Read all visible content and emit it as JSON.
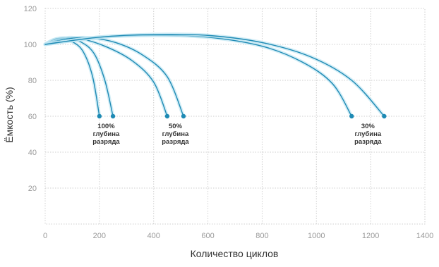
{
  "chart_data": {
    "type": "line",
    "xlabel": "Количество циклов",
    "ylabel": "Ёмкость (%)",
    "xlim": [
      0,
      1400
    ],
    "ylim": [
      0,
      120
    ],
    "x_ticks": [
      0,
      200,
      400,
      600,
      800,
      1000,
      1200,
      1400
    ],
    "y_ticks": [
      20,
      40,
      60,
      80,
      100,
      120
    ],
    "grid": true,
    "line_color": "#1e8ab4",
    "glow_color": "#bfe6f2",
    "series": [
      {
        "points": [
          [
            0,
            100
          ],
          [
            30,
            102.5
          ],
          [
            60,
            103
          ],
          [
            100,
            101.5
          ],
          [
            140,
            96
          ],
          [
            175,
            82
          ],
          [
            200,
            60
          ]
        ]
      },
      {
        "points": [
          [
            0,
            100
          ],
          [
            40,
            103
          ],
          [
            80,
            103.5
          ],
          [
            130,
            101.5
          ],
          [
            180,
            95
          ],
          [
            220,
            80
          ],
          [
            250,
            60
          ]
        ]
      },
      {
        "points": [
          [
            0,
            100
          ],
          [
            60,
            103
          ],
          [
            120,
            103.5
          ],
          [
            220,
            99
          ],
          [
            320,
            91
          ],
          [
            400,
            79
          ],
          [
            450,
            60
          ]
        ]
      },
      {
        "points": [
          [
            0,
            100
          ],
          [
            80,
            103
          ],
          [
            160,
            103.7
          ],
          [
            260,
            101
          ],
          [
            360,
            94
          ],
          [
            450,
            82
          ],
          [
            510,
            60
          ]
        ]
      },
      {
        "points": [
          [
            0,
            100
          ],
          [
            200,
            104
          ],
          [
            400,
            105
          ],
          [
            600,
            104
          ],
          [
            800,
            99
          ],
          [
            950,
            90
          ],
          [
            1060,
            78
          ],
          [
            1130,
            60
          ]
        ]
      },
      {
        "points": [
          [
            0,
            100
          ],
          [
            200,
            104
          ],
          [
            400,
            105.5
          ],
          [
            600,
            105
          ],
          [
            800,
            101
          ],
          [
            980,
            93
          ],
          [
            1130,
            80
          ],
          [
            1250,
            60
          ]
        ]
      }
    ],
    "annotations": [
      {
        "x": 225,
        "y": 60,
        "lines": [
          "100%",
          "глубина",
          "разряда"
        ]
      },
      {
        "x": 480,
        "y": 60,
        "lines": [
          "50%",
          "глубина",
          "разряда"
        ]
      },
      {
        "x": 1190,
        "y": 60,
        "lines": [
          "30%",
          "глубина",
          "разряда"
        ]
      }
    ]
  }
}
